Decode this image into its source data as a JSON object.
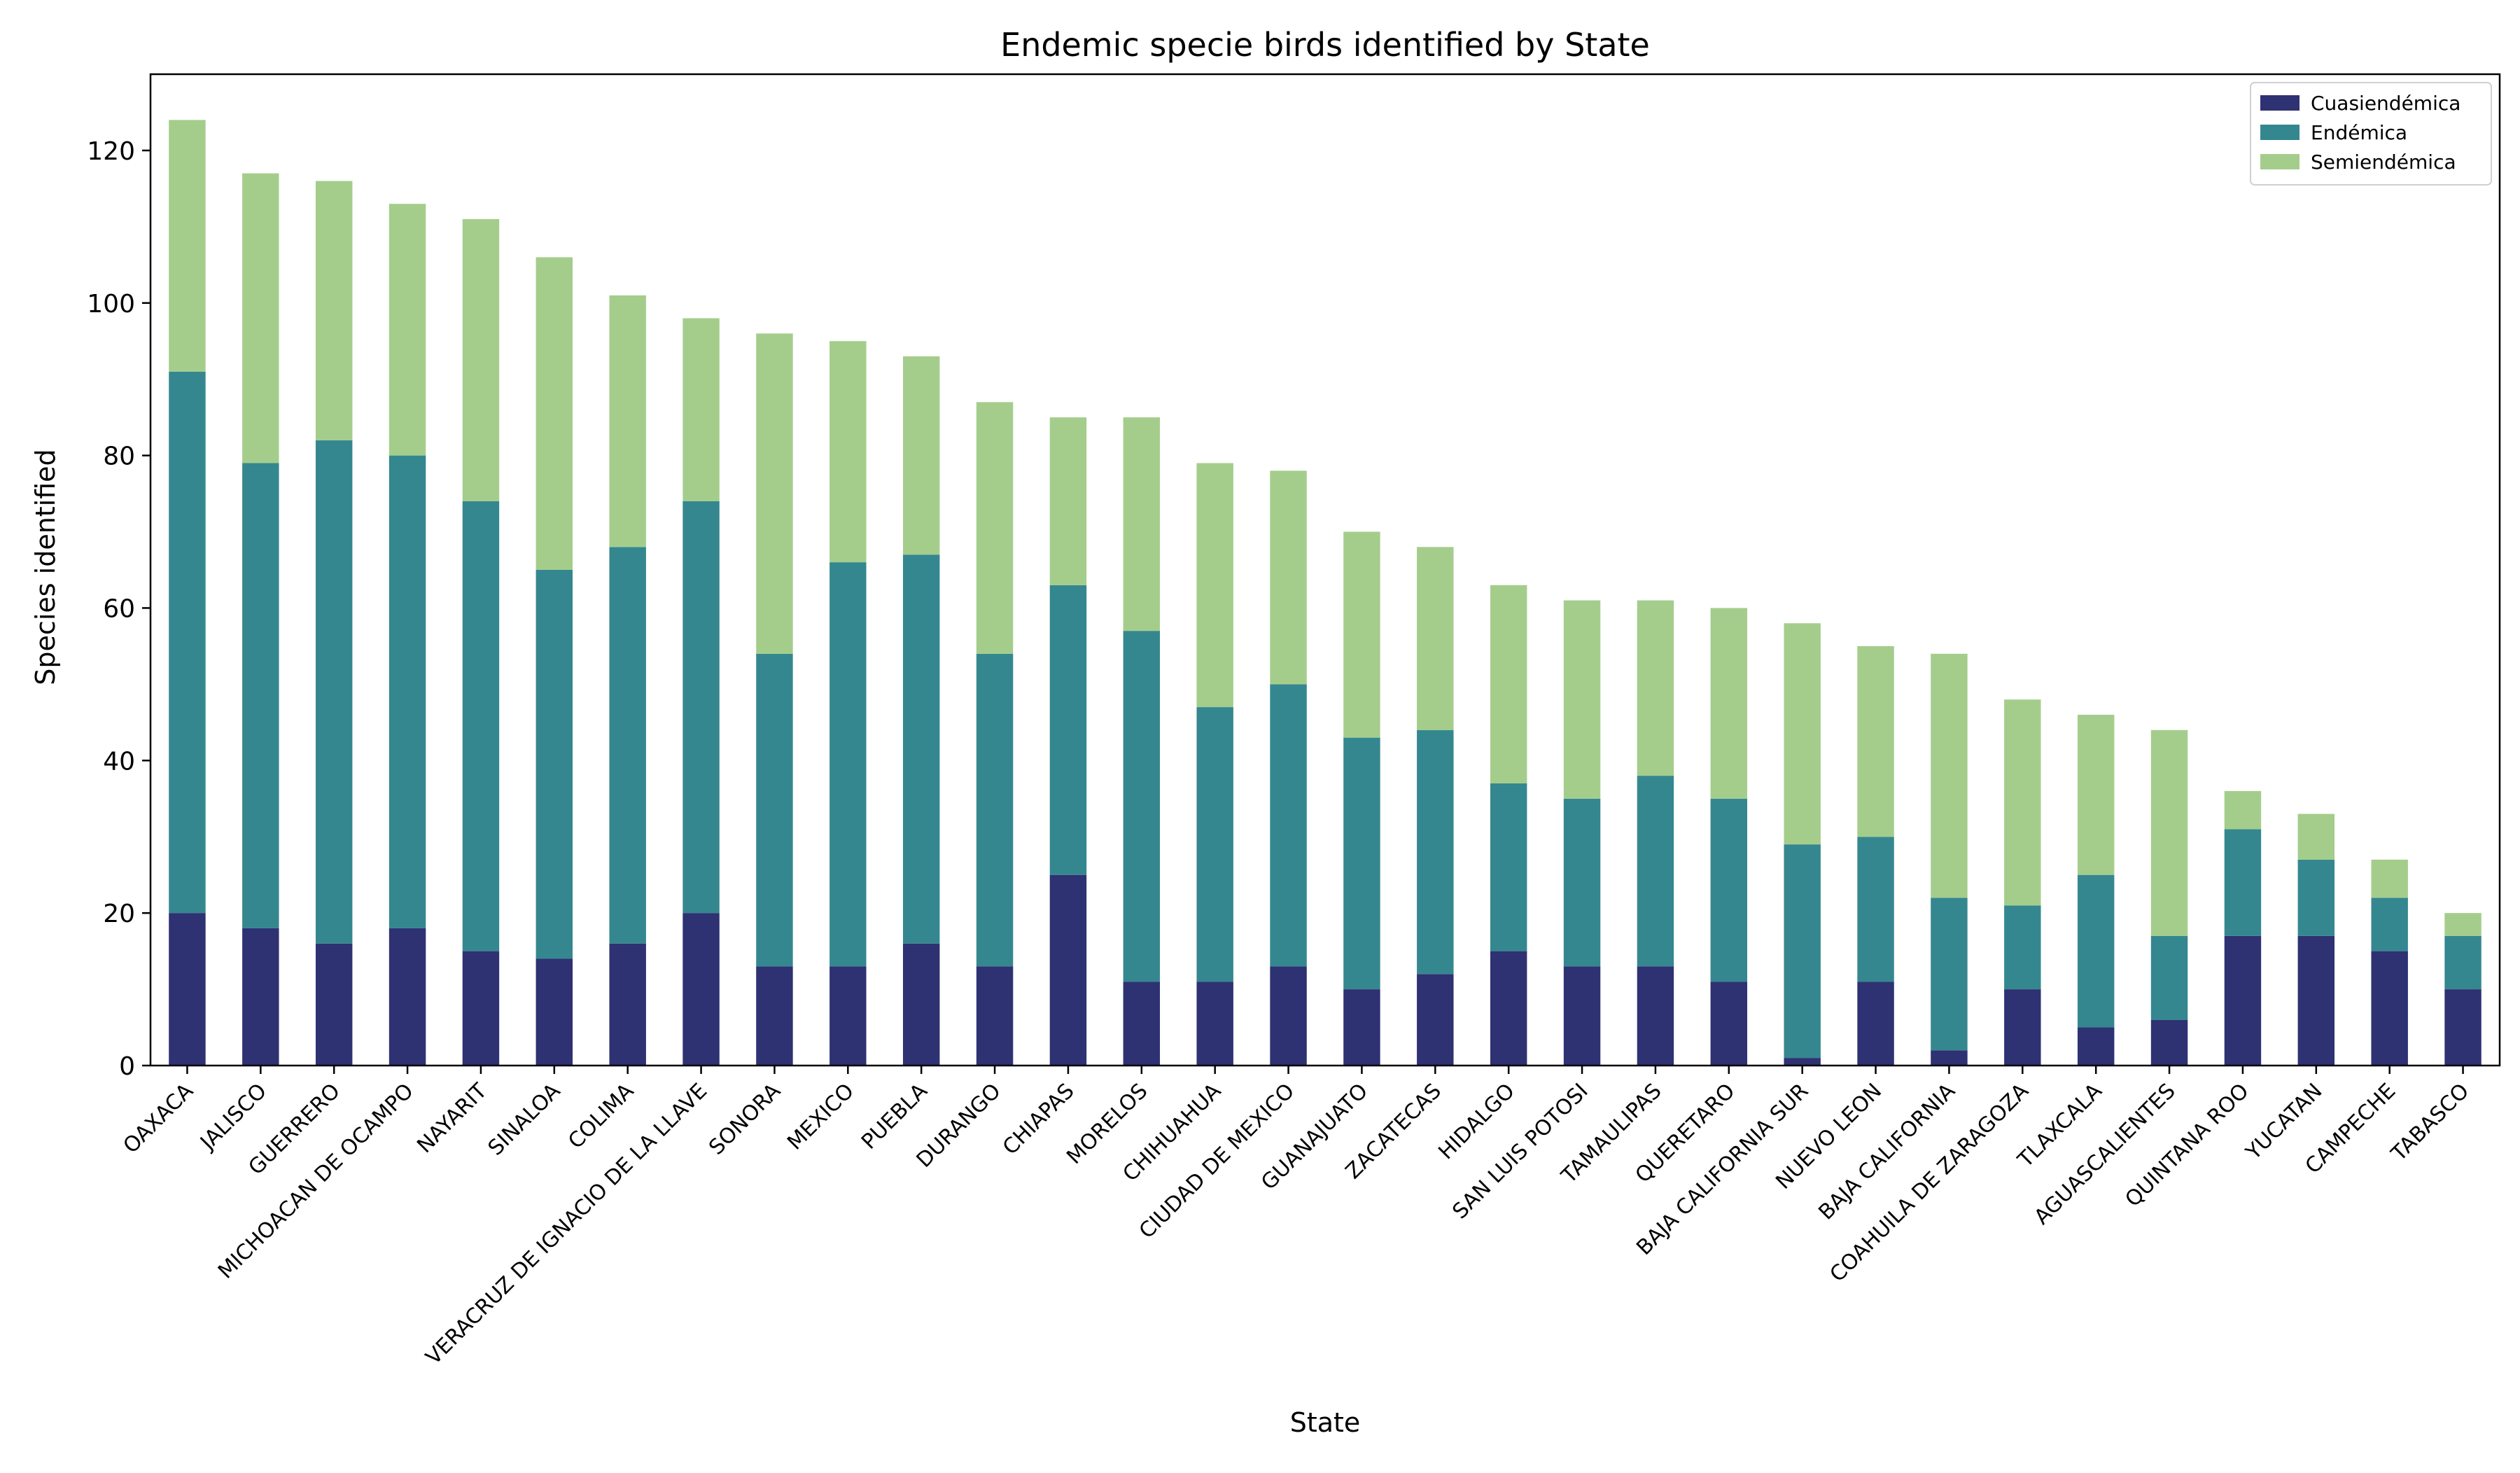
{
  "chart_data": {
    "type": "bar",
    "stacked": true,
    "title": "Endemic specie birds identified by State",
    "xlabel": "State",
    "ylabel": "Species identified",
    "ylim": [
      0,
      130
    ],
    "yticks": [
      0,
      20,
      40,
      60,
      80,
      100,
      120
    ],
    "grid": false,
    "legend_position": "top-right",
    "categories": [
      "OAXACA",
      "JALISCO",
      "GUERRERO",
      "MICHOACAN DE OCAMPO",
      "NAYARIT",
      "SINALOA",
      "COLIMA",
      "VERACRUZ DE IGNACIO DE LA LLAVE",
      "SONORA",
      "MEXICO",
      "PUEBLA",
      "DURANGO",
      "CHIAPAS",
      "MORELOS",
      "CHIHUAHUA",
      "CIUDAD DE MEXICO",
      "GUANAJUATO",
      "ZACATECAS",
      "HIDALGO",
      "SAN LUIS POTOSI",
      "TAMAULIPAS",
      "QUERETARO",
      "BAJA CALIFORNIA SUR",
      "NUEVO LEON",
      "BAJA CALIFORNIA",
      "COAHUILA DE ZARAGOZA",
      "TLAXCALA",
      "AGUASCALIENTES",
      "QUINTANA ROO",
      "YUCATAN",
      "CAMPECHE",
      "TABASCO"
    ],
    "series": [
      {
        "name": "Cuasiendémica",
        "color": "#2e3172",
        "values": [
          20,
          18,
          16,
          18,
          15,
          14,
          16,
          20,
          13,
          13,
          16,
          13,
          25,
          11,
          11,
          13,
          10,
          12,
          15,
          13,
          13,
          11,
          1,
          11,
          2,
          10,
          5,
          6,
          17,
          17,
          15,
          10
        ]
      },
      {
        "name": "Endémica",
        "color": "#35878f",
        "values": [
          71,
          61,
          66,
          62,
          59,
          51,
          52,
          54,
          41,
          53,
          51,
          41,
          38,
          46,
          36,
          37,
          33,
          32,
          22,
          22,
          25,
          24,
          28,
          19,
          20,
          11,
          20,
          11,
          14,
          10,
          7,
          7
        ]
      },
      {
        "name": "Semiendémica",
        "color": "#a4cd8c",
        "values": [
          33,
          38,
          34,
          33,
          37,
          41,
          33,
          24,
          42,
          29,
          26,
          33,
          22,
          28,
          32,
          28,
          27,
          24,
          26,
          26,
          23,
          25,
          29,
          25,
          32,
          27,
          21,
          27,
          5,
          6,
          5,
          3
        ]
      }
    ]
  }
}
